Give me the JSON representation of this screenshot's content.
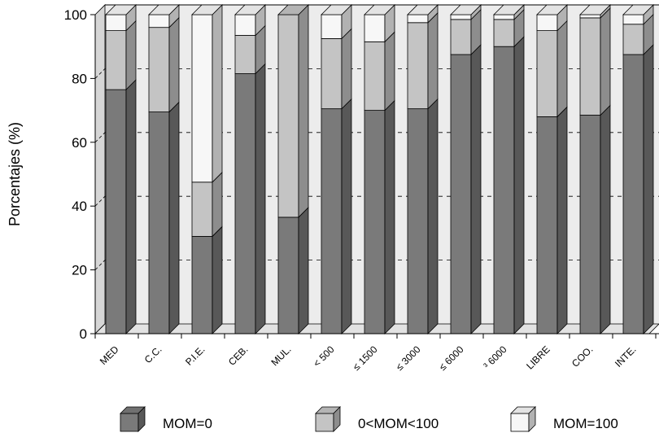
{
  "chart_data": {
    "type": "bar",
    "stacked": true,
    "style": "3d",
    "title": "",
    "xlabel": "",
    "ylabel": "Porcentajes (%)",
    "ylim": [
      0,
      100
    ],
    "yticks": [
      "0",
      "20",
      "40",
      "60",
      "80",
      "100"
    ],
    "grid": "dashed horizontal",
    "legend_position": "bottom",
    "categories": [
      "MED",
      "C.C.",
      "P.I.E.",
      "CEB.",
      "MUL.",
      "< 500",
      "≤ 1500",
      "≤ 3000",
      "≤ 6000",
      "³ 6000",
      "LIBRE",
      "COO.",
      "INTE."
    ],
    "series": [
      {
        "name": "MOM=0",
        "color": "#7a7a7a",
        "values": [
          76.5,
          69.5,
          30.5,
          81.5,
          36.5,
          70.5,
          70,
          70.5,
          87.5,
          90,
          68,
          68.5,
          87.5
        ]
      },
      {
        "name": "0<MOM<100",
        "color": "#c4c4c4",
        "values": [
          18.5,
          26.5,
          17,
          12,
          63.5,
          22,
          21.5,
          27,
          11,
          8.5,
          27,
          30.5,
          9.5
        ]
      },
      {
        "name": "MOM=100",
        "color": "#f7f7f7",
        "values": [
          5,
          4,
          52.5,
          6.5,
          0,
          7.5,
          8.5,
          2.5,
          1.5,
          1.5,
          5,
          1,
          3
        ]
      }
    ]
  }
}
